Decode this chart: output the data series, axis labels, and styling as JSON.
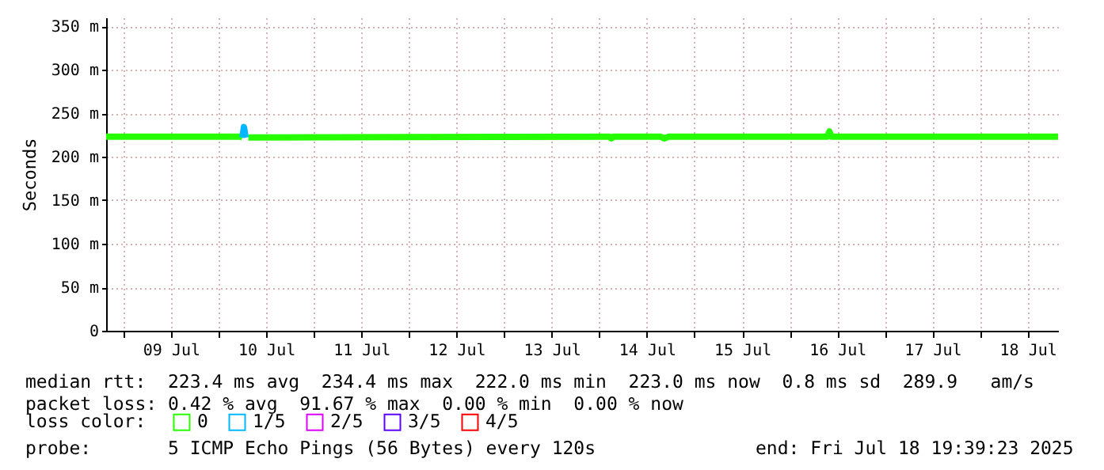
{
  "chart_data": {
    "type": "line",
    "ylabel": "Seconds",
    "x": [
      "2025-07-08T19:39",
      "2025-07-10T05:30",
      "2025-07-10T06:00",
      "2025-07-10T06:24",
      "2025-07-10T06:50",
      "2025-07-10T07:30",
      "2025-07-14T02:30",
      "2025-07-14T03:00",
      "2025-07-14T03:30",
      "2025-07-14T15:30",
      "2025-07-14T16:20",
      "2025-07-14T17:30",
      "2025-07-16T09:30",
      "2025-07-16T10:00",
      "2025-07-16T10:30",
      "2025-07-18T19:39"
    ],
    "series": [
      {
        "name": "0",
        "color": "#26ff00",
        "values": [
          223,
          223,
          222,
          null,
          null,
          222,
          223,
          221,
          223,
          223,
          221,
          223,
          223,
          229,
          223,
          223
        ]
      },
      {
        "name": "1/5",
        "color": "#00b8ff",
        "values": [
          null,
          null,
          222,
          234,
          222,
          null,
          null,
          null,
          null,
          null,
          null,
          null,
          null,
          null,
          null,
          null
        ]
      },
      {
        "name": "2/5",
        "color": "#dd00ff",
        "values": [
          null,
          null,
          null,
          null,
          null,
          null,
          null,
          null,
          null,
          null,
          null,
          null,
          null,
          null,
          null,
          null
        ]
      },
      {
        "name": "3/5",
        "color": "#5e00ff",
        "values": [
          null,
          null,
          null,
          null,
          null,
          null,
          null,
          null,
          null,
          null,
          null,
          null,
          null,
          null,
          null,
          null
        ]
      },
      {
        "name": "4/5",
        "color": "#ff0000",
        "values": [
          null,
          null,
          null,
          null,
          null,
          null,
          null,
          null,
          null,
          null,
          null,
          null,
          null,
          null,
          null,
          null
        ]
      }
    ],
    "xlim": [
      "2025-07-08T19:39",
      "2025-07-18T19:39"
    ],
    "xticks": [
      {
        "value": "2025-07-09",
        "label": null
      },
      {
        "value": "2025-07-09T12:00",
        "label": "09 Jul"
      },
      {
        "value": "2025-07-10",
        "label": null
      },
      {
        "value": "2025-07-10T12:00",
        "label": "10 Jul"
      },
      {
        "value": "2025-07-11",
        "label": null
      },
      {
        "value": "2025-07-11T12:00",
        "label": "11 Jul"
      },
      {
        "value": "2025-07-12",
        "label": null
      },
      {
        "value": "2025-07-12T12:00",
        "label": "12 Jul"
      },
      {
        "value": "2025-07-13",
        "label": null
      },
      {
        "value": "2025-07-13T12:00",
        "label": "13 Jul"
      },
      {
        "value": "2025-07-14",
        "label": null
      },
      {
        "value": "2025-07-14T12:00",
        "label": "14 Jul"
      },
      {
        "value": "2025-07-15",
        "label": null
      },
      {
        "value": "2025-07-15T12:00",
        "label": "15 Jul"
      },
      {
        "value": "2025-07-16",
        "label": null
      },
      {
        "value": "2025-07-16T12:00",
        "label": "16 Jul"
      },
      {
        "value": "2025-07-17",
        "label": null
      },
      {
        "value": "2025-07-17T12:00",
        "label": "17 Jul"
      },
      {
        "value": "2025-07-18",
        "label": null
      },
      {
        "value": "2025-07-18T12:00",
        "label": "18 Jul"
      }
    ],
    "ylim": [
      0,
      360
    ],
    "yticks": [
      0,
      {
        "value": 50,
        "label": "50 m"
      },
      {
        "value": 100,
        "label": "100 m"
      },
      {
        "value": 150,
        "label": "150 m"
      },
      {
        "value": 200,
        "label": "200 m"
      },
      {
        "value": 250,
        "label": "250 m"
      },
      {
        "value": 300,
        "label": "300 m"
      },
      {
        "value": 350,
        "label": "350 m"
      }
    ],
    "grid": true,
    "legend": "bottom",
    "legend_title": "loss color:",
    "marker": "none",
    "line_style": "solid",
    "annotations": [
      "median rtt:  223.4 ms avg  234.4 ms max  222.0 ms min  223.0 ms now  0.8 ms sd  289.9   am/s",
      "packet loss: 0.42 % avg  91.67 % max  0.00 % min  0.00 % now",
      "probe:       5 ICMP Echo Pings (56 Bytes) every 120s",
      "end: Fri Jul 18 19:39:23 2025"
    ]
  }
}
